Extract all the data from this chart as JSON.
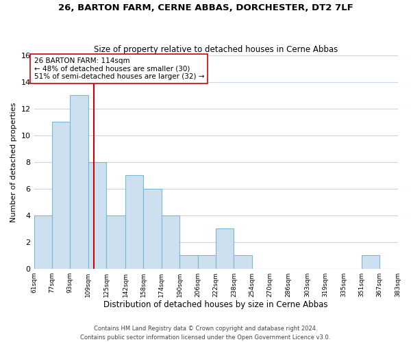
{
  "title": "26, BARTON FARM, CERNE ABBAS, DORCHESTER, DT2 7LF",
  "subtitle": "Size of property relative to detached houses in Cerne Abbas",
  "xlabel": "Distribution of detached houses by size in Cerne Abbas",
  "ylabel": "Number of detached properties",
  "bin_edges": [
    61,
    77,
    93,
    109,
    125,
    142,
    158,
    174,
    190,
    206,
    222,
    238,
    254,
    270,
    286,
    303,
    319,
    335,
    351,
    367,
    383
  ],
  "counts": [
    4,
    11,
    13,
    8,
    4,
    7,
    6,
    4,
    1,
    1,
    3,
    1,
    0,
    0,
    0,
    0,
    0,
    0,
    1,
    0
  ],
  "bar_color": "#cce0f0",
  "bar_edgecolor": "#7ab8d8",
  "property_line_x": 114,
  "property_line_color": "#cc0000",
  "ylim": [
    0,
    16
  ],
  "yticks": [
    0,
    2,
    4,
    6,
    8,
    10,
    12,
    14,
    16
  ],
  "annotation_line1": "26 BARTON FARM: 114sqm",
  "annotation_line2": "← 48% of detached houses are smaller (30)",
  "annotation_line3": "51% of semi-detached houses are larger (32) →",
  "annotation_fontsize": 7.5,
  "footnote1": "Contains HM Land Registry data © Crown copyright and database right 2024.",
  "footnote2": "Contains public sector information licensed under the Open Government Licence v3.0.",
  "tick_labels": [
    "61sqm",
    "77sqm",
    "93sqm",
    "109sqm",
    "125sqm",
    "142sqm",
    "158sqm",
    "174sqm",
    "190sqm",
    "206sqm",
    "222sqm",
    "238sqm",
    "254sqm",
    "270sqm",
    "286sqm",
    "303sqm",
    "319sqm",
    "335sqm",
    "351sqm",
    "367sqm",
    "383sqm"
  ],
  "background_color": "#ffffff",
  "grid_color": "#c8d4e8"
}
